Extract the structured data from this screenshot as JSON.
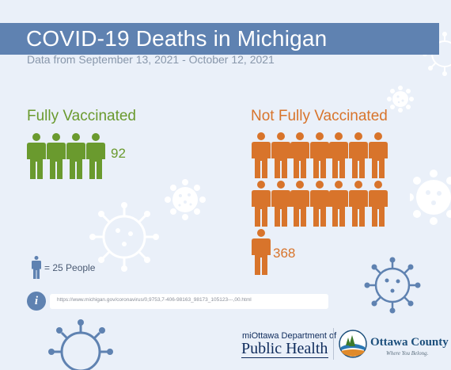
{
  "header": {
    "title": "COVID-19 Deaths in Michigan",
    "subtitle": "Data from September 13, 2021 - October 12, 2021"
  },
  "groups": {
    "vaccinated": {
      "label": "Fully Vaccinated",
      "deaths": "92",
      "icons": 4,
      "color": "#6a9a2e"
    },
    "unvaccinated": {
      "label": "Not Fully Vaccinated",
      "deaths": "368",
      "icons": 15,
      "color": "#d8742b"
    }
  },
  "legend": {
    "text": "= 25 People",
    "icon_color": "#5f82b1"
  },
  "source": {
    "url": "https://www.michigan.gov/coronavirus/0,9753,7-406-98163_98173_105123---,00.html"
  },
  "footer": {
    "dept_line": "miOttawa Department of",
    "dept_name": "Public Health",
    "county_name": "Ottawa County",
    "county_tagline": "Where You Belong."
  },
  "colors": {
    "title_bar": "#5f82b1",
    "background": "#eaf0f9",
    "virus_white": "#ffffff",
    "virus_blue": "#5f82b1"
  }
}
